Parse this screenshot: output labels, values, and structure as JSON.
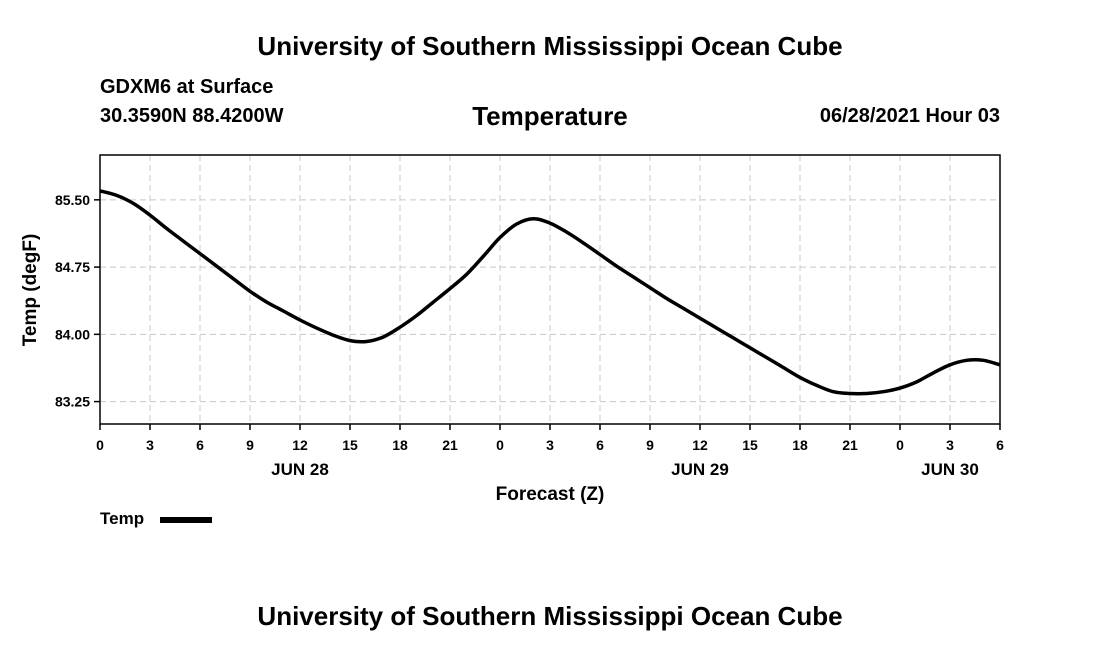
{
  "header": {
    "top_title": "University of Southern Mississippi Ocean Cube",
    "station": "GDXM6 at Surface",
    "coords": "30.3590N  88.4200W",
    "datetime": "06/28/2021 Hour 03",
    "bottom_title": "University of Southern Mississippi Ocean Cube"
  },
  "chart_data": {
    "type": "line",
    "title": "Temperature",
    "xlabel": "Forecast (Z)",
    "ylabel": "Temp (degF)",
    "xlim": [
      0,
      54
    ],
    "ylim": [
      83.0,
      86.0
    ],
    "y_ticks": [
      83.25,
      84.0,
      84.75,
      85.5
    ],
    "y_tick_labels": [
      "83.25",
      "84.00",
      "84.75",
      "85.50"
    ],
    "x_ticks": [
      0,
      3,
      6,
      9,
      12,
      15,
      18,
      21,
      24,
      27,
      30,
      33,
      36,
      39,
      42,
      45,
      48,
      51,
      54
    ],
    "x_tick_labels": [
      "0",
      "3",
      "6",
      "9",
      "12",
      "15",
      "18",
      "21",
      "0",
      "3",
      "6",
      "9",
      "12",
      "15",
      "18",
      "21",
      "0",
      "3",
      "6"
    ],
    "date_labels": [
      {
        "x": 12,
        "label": "JUN 28"
      },
      {
        "x": 36,
        "label": "JUN 29"
      },
      {
        "x": 51,
        "label": "JUN 30"
      }
    ],
    "grid": true,
    "legend": {
      "placement": "bottom-left",
      "entries": [
        "Temp"
      ]
    },
    "series": [
      {
        "name": "Temp",
        "color": "#000000",
        "x": [
          0,
          1,
          2,
          3,
          4,
          5,
          6,
          7,
          8,
          9,
          10,
          11,
          12,
          13,
          14,
          15,
          16,
          17,
          18,
          19,
          20,
          21,
          22,
          23,
          24,
          25,
          26,
          27,
          28,
          29,
          30,
          31,
          32,
          33,
          34,
          35,
          36,
          37,
          38,
          39,
          40,
          41,
          42,
          43,
          44,
          45,
          46,
          47,
          48,
          49,
          50,
          51,
          52,
          53,
          54
        ],
        "values": [
          85.6,
          85.55,
          85.46,
          85.33,
          85.18,
          85.04,
          84.9,
          84.76,
          84.62,
          84.48,
          84.36,
          84.26,
          84.16,
          84.07,
          83.99,
          83.93,
          83.92,
          83.97,
          84.08,
          84.21,
          84.36,
          84.51,
          84.67,
          84.87,
          85.08,
          85.23,
          85.29,
          85.24,
          85.14,
          85.02,
          84.89,
          84.76,
          84.64,
          84.52,
          84.4,
          84.29,
          84.18,
          84.07,
          83.96,
          83.85,
          83.74,
          83.63,
          83.52,
          83.43,
          83.36,
          83.34,
          83.34,
          83.36,
          83.4,
          83.47,
          83.57,
          83.66,
          83.71,
          83.71,
          83.66
        ]
      }
    ]
  }
}
